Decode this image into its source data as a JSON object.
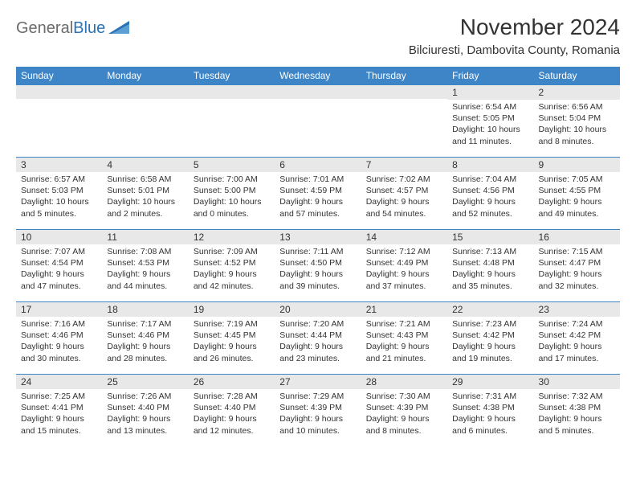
{
  "logo": {
    "text_a": "General",
    "text_b": "Blue"
  },
  "header": {
    "month_title": "November 2024",
    "location": "Bilciuresti, Dambovita County, Romania"
  },
  "colors": {
    "header_bg": "#3d85c6",
    "daynum_bg": "#e8e8e8",
    "border": "#3d85c6",
    "logo_gray": "#6b6b6b",
    "logo_blue": "#2a72b5"
  },
  "weekdays": [
    "Sunday",
    "Monday",
    "Tuesday",
    "Wednesday",
    "Thursday",
    "Friday",
    "Saturday"
  ],
  "weeks": [
    [
      {
        "n": "",
        "sunrise": "",
        "sunset": "",
        "daylight": ""
      },
      {
        "n": "",
        "sunrise": "",
        "sunset": "",
        "daylight": ""
      },
      {
        "n": "",
        "sunrise": "",
        "sunset": "",
        "daylight": ""
      },
      {
        "n": "",
        "sunrise": "",
        "sunset": "",
        "daylight": ""
      },
      {
        "n": "",
        "sunrise": "",
        "sunset": "",
        "daylight": ""
      },
      {
        "n": "1",
        "sunrise": "Sunrise: 6:54 AM",
        "sunset": "Sunset: 5:05 PM",
        "daylight": "Daylight: 10 hours and 11 minutes."
      },
      {
        "n": "2",
        "sunrise": "Sunrise: 6:56 AM",
        "sunset": "Sunset: 5:04 PM",
        "daylight": "Daylight: 10 hours and 8 minutes."
      }
    ],
    [
      {
        "n": "3",
        "sunrise": "Sunrise: 6:57 AM",
        "sunset": "Sunset: 5:03 PM",
        "daylight": "Daylight: 10 hours and 5 minutes."
      },
      {
        "n": "4",
        "sunrise": "Sunrise: 6:58 AM",
        "sunset": "Sunset: 5:01 PM",
        "daylight": "Daylight: 10 hours and 2 minutes."
      },
      {
        "n": "5",
        "sunrise": "Sunrise: 7:00 AM",
        "sunset": "Sunset: 5:00 PM",
        "daylight": "Daylight: 10 hours and 0 minutes."
      },
      {
        "n": "6",
        "sunrise": "Sunrise: 7:01 AM",
        "sunset": "Sunset: 4:59 PM",
        "daylight": "Daylight: 9 hours and 57 minutes."
      },
      {
        "n": "7",
        "sunrise": "Sunrise: 7:02 AM",
        "sunset": "Sunset: 4:57 PM",
        "daylight": "Daylight: 9 hours and 54 minutes."
      },
      {
        "n": "8",
        "sunrise": "Sunrise: 7:04 AM",
        "sunset": "Sunset: 4:56 PM",
        "daylight": "Daylight: 9 hours and 52 minutes."
      },
      {
        "n": "9",
        "sunrise": "Sunrise: 7:05 AM",
        "sunset": "Sunset: 4:55 PM",
        "daylight": "Daylight: 9 hours and 49 minutes."
      }
    ],
    [
      {
        "n": "10",
        "sunrise": "Sunrise: 7:07 AM",
        "sunset": "Sunset: 4:54 PM",
        "daylight": "Daylight: 9 hours and 47 minutes."
      },
      {
        "n": "11",
        "sunrise": "Sunrise: 7:08 AM",
        "sunset": "Sunset: 4:53 PM",
        "daylight": "Daylight: 9 hours and 44 minutes."
      },
      {
        "n": "12",
        "sunrise": "Sunrise: 7:09 AM",
        "sunset": "Sunset: 4:52 PM",
        "daylight": "Daylight: 9 hours and 42 minutes."
      },
      {
        "n": "13",
        "sunrise": "Sunrise: 7:11 AM",
        "sunset": "Sunset: 4:50 PM",
        "daylight": "Daylight: 9 hours and 39 minutes."
      },
      {
        "n": "14",
        "sunrise": "Sunrise: 7:12 AM",
        "sunset": "Sunset: 4:49 PM",
        "daylight": "Daylight: 9 hours and 37 minutes."
      },
      {
        "n": "15",
        "sunrise": "Sunrise: 7:13 AM",
        "sunset": "Sunset: 4:48 PM",
        "daylight": "Daylight: 9 hours and 35 minutes."
      },
      {
        "n": "16",
        "sunrise": "Sunrise: 7:15 AM",
        "sunset": "Sunset: 4:47 PM",
        "daylight": "Daylight: 9 hours and 32 minutes."
      }
    ],
    [
      {
        "n": "17",
        "sunrise": "Sunrise: 7:16 AM",
        "sunset": "Sunset: 4:46 PM",
        "daylight": "Daylight: 9 hours and 30 minutes."
      },
      {
        "n": "18",
        "sunrise": "Sunrise: 7:17 AM",
        "sunset": "Sunset: 4:46 PM",
        "daylight": "Daylight: 9 hours and 28 minutes."
      },
      {
        "n": "19",
        "sunrise": "Sunrise: 7:19 AM",
        "sunset": "Sunset: 4:45 PM",
        "daylight": "Daylight: 9 hours and 26 minutes."
      },
      {
        "n": "20",
        "sunrise": "Sunrise: 7:20 AM",
        "sunset": "Sunset: 4:44 PM",
        "daylight": "Daylight: 9 hours and 23 minutes."
      },
      {
        "n": "21",
        "sunrise": "Sunrise: 7:21 AM",
        "sunset": "Sunset: 4:43 PM",
        "daylight": "Daylight: 9 hours and 21 minutes."
      },
      {
        "n": "22",
        "sunrise": "Sunrise: 7:23 AM",
        "sunset": "Sunset: 4:42 PM",
        "daylight": "Daylight: 9 hours and 19 minutes."
      },
      {
        "n": "23",
        "sunrise": "Sunrise: 7:24 AM",
        "sunset": "Sunset: 4:42 PM",
        "daylight": "Daylight: 9 hours and 17 minutes."
      }
    ],
    [
      {
        "n": "24",
        "sunrise": "Sunrise: 7:25 AM",
        "sunset": "Sunset: 4:41 PM",
        "daylight": "Daylight: 9 hours and 15 minutes."
      },
      {
        "n": "25",
        "sunrise": "Sunrise: 7:26 AM",
        "sunset": "Sunset: 4:40 PM",
        "daylight": "Daylight: 9 hours and 13 minutes."
      },
      {
        "n": "26",
        "sunrise": "Sunrise: 7:28 AM",
        "sunset": "Sunset: 4:40 PM",
        "daylight": "Daylight: 9 hours and 12 minutes."
      },
      {
        "n": "27",
        "sunrise": "Sunrise: 7:29 AM",
        "sunset": "Sunset: 4:39 PM",
        "daylight": "Daylight: 9 hours and 10 minutes."
      },
      {
        "n": "28",
        "sunrise": "Sunrise: 7:30 AM",
        "sunset": "Sunset: 4:39 PM",
        "daylight": "Daylight: 9 hours and 8 minutes."
      },
      {
        "n": "29",
        "sunrise": "Sunrise: 7:31 AM",
        "sunset": "Sunset: 4:38 PM",
        "daylight": "Daylight: 9 hours and 6 minutes."
      },
      {
        "n": "30",
        "sunrise": "Sunrise: 7:32 AM",
        "sunset": "Sunset: 4:38 PM",
        "daylight": "Daylight: 9 hours and 5 minutes."
      }
    ]
  ]
}
